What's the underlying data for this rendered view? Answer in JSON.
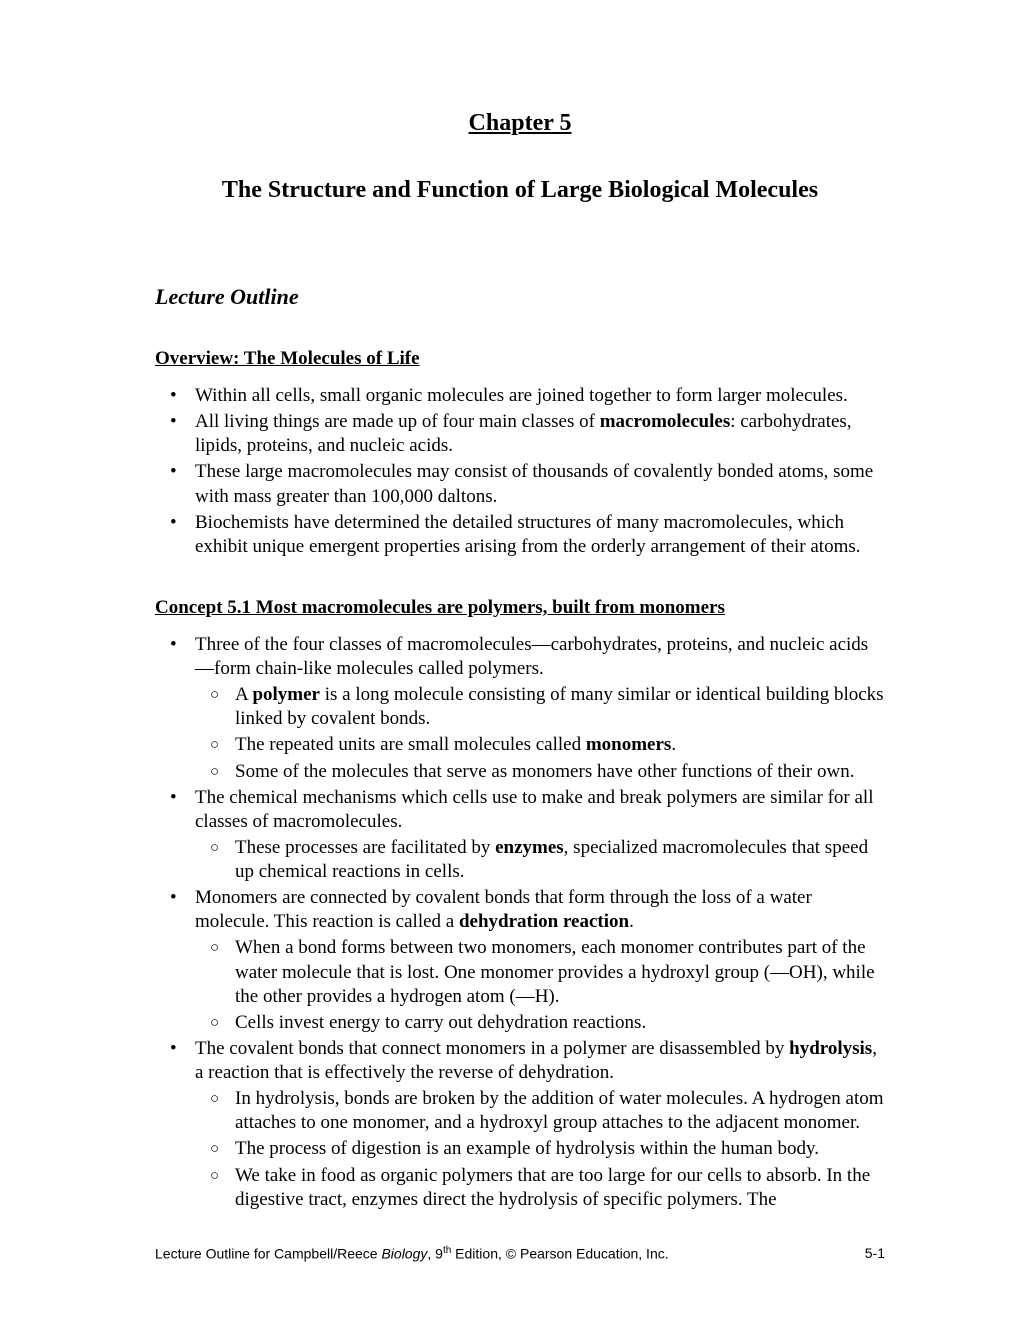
{
  "chapter": "Chapter 5",
  "title": "The Structure and Function of Large Biological Molecules",
  "lecture_heading": "Lecture Outline",
  "overview": {
    "heading": "Overview: The Molecules of Life",
    "b1": "Within all cells, small organic molecules are joined together to form larger molecules.",
    "b2_pre": "All living things are made up of four main classes of ",
    "b2_bold": "macromolecules",
    "b2_post": ": carbohydrates, lipids, proteins, and nucleic acids.",
    "b3": "These large macromolecules may consist of thousands of covalently bonded atoms, some with mass greater than 100,000 daltons.",
    "b4": "Biochemists have determined the detailed structures of many macromolecules, which exhibit unique emergent properties arising from the orderly arrangement of their atoms."
  },
  "concept": {
    "heading": "Concept 5.1 Most macromolecules are polymers, built from monomers",
    "b1": "Three of the four classes of macromolecules—carbohydrates, proteins, and nucleic acids—form chain-like molecules called polymers.",
    "b1s1_pre": "A ",
    "b1s1_bold": "polymer",
    "b1s1_post": " is a long molecule consisting of many similar or identical building blocks linked by covalent bonds.",
    "b1s2_pre": "The repeated units are small molecules called ",
    "b1s2_bold": "monomers",
    "b1s2_post": ".",
    "b1s3": "Some of the molecules that serve as monomers have other functions of their own.",
    "b2": "The chemical mechanisms which cells use to make and break polymers are similar for all classes of macromolecules.",
    "b2s1_pre": "These processes are facilitated by ",
    "b2s1_bold": "enzymes",
    "b2s1_post": ", specialized macromolecules that speed up chemical reactions in cells.",
    "b3_pre": "Monomers are connected by covalent bonds that form through the loss of a water molecule. This reaction is called a ",
    "b3_bold": "dehydration reaction",
    "b3_post": ".",
    "b3s1": "When a bond forms between two monomers, each monomer contributes part of the water molecule that is lost. One monomer provides a hydroxyl group (—OH), while the other provides a hydrogen atom (—H).",
    "b3s2": "Cells invest energy to carry out dehydration reactions.",
    "b4_pre": "The covalent bonds that connect monomers in a polymer are disassembled by ",
    "b4_bold": "hydrolysis",
    "b4_post": ", a reaction that is effectively the reverse of dehydration.",
    "b4s1": "In hydrolysis, bonds are broken by the addition of water molecules. A hydrogen atom attaches to one monomer, and a hydroxyl group attaches to the adjacent monomer.",
    "b4s2": "The process of digestion is an example of hydrolysis within the human body.",
    "b4s3": "We take in food as organic polymers that are too large for our cells to absorb. In the digestive tract, enzymes direct the hydrolysis of specific polymers. The"
  },
  "footer": {
    "left_pre": "Lecture Outline for Campbell/Reece ",
    "left_italic": "Biology",
    "left_post1": ", 9",
    "left_sup": "th",
    "left_post2": " Edition, © Pearson Education, Inc.",
    "page": "5-1"
  }
}
